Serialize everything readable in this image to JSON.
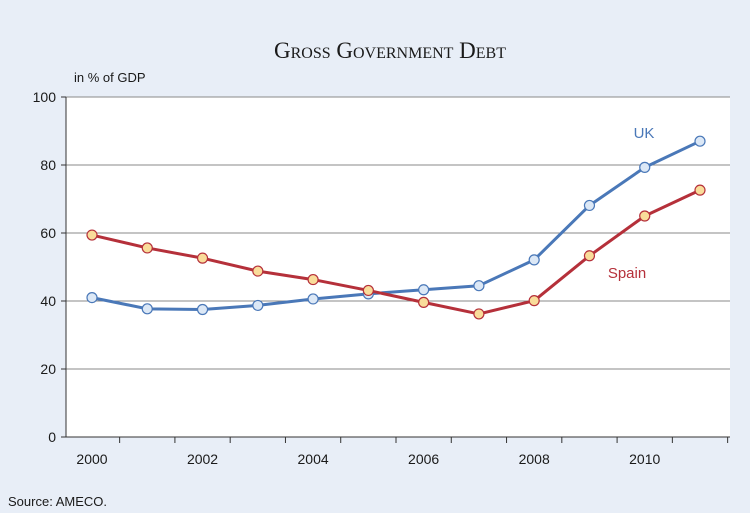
{
  "chart_data": {
    "type": "line",
    "title": "Gross Government Debt",
    "ylabel": "in % of GDP",
    "source": "Source: AMECO.",
    "x": [
      2000,
      2001,
      2002,
      2003,
      2004,
      2005,
      2006,
      2007,
      2008,
      2009,
      2010,
      2011
    ],
    "xlim": [
      2000,
      2011
    ],
    "ylim": [
      0,
      100
    ],
    "x_ticks": [
      2000,
      2002,
      2004,
      2006,
      2008,
      2010
    ],
    "y_ticks": [
      0,
      20,
      40,
      60,
      80,
      100
    ],
    "grid": "horizontal",
    "series": [
      {
        "name": "UK",
        "color": "#4a78b8",
        "marker_fill": "#dce8f6",
        "values": [
          41.0,
          37.7,
          37.5,
          38.7,
          40.6,
          42.1,
          43.3,
          44.5,
          52.1,
          68.1,
          79.3,
          87.0
        ]
      },
      {
        "name": "Spain",
        "color": "#b5303a",
        "marker_fill": "#f9dc9a",
        "values": [
          59.4,
          55.6,
          52.6,
          48.8,
          46.3,
          43.1,
          39.6,
          36.2,
          40.1,
          53.3,
          65.0,
          72.6
        ]
      }
    ]
  }
}
